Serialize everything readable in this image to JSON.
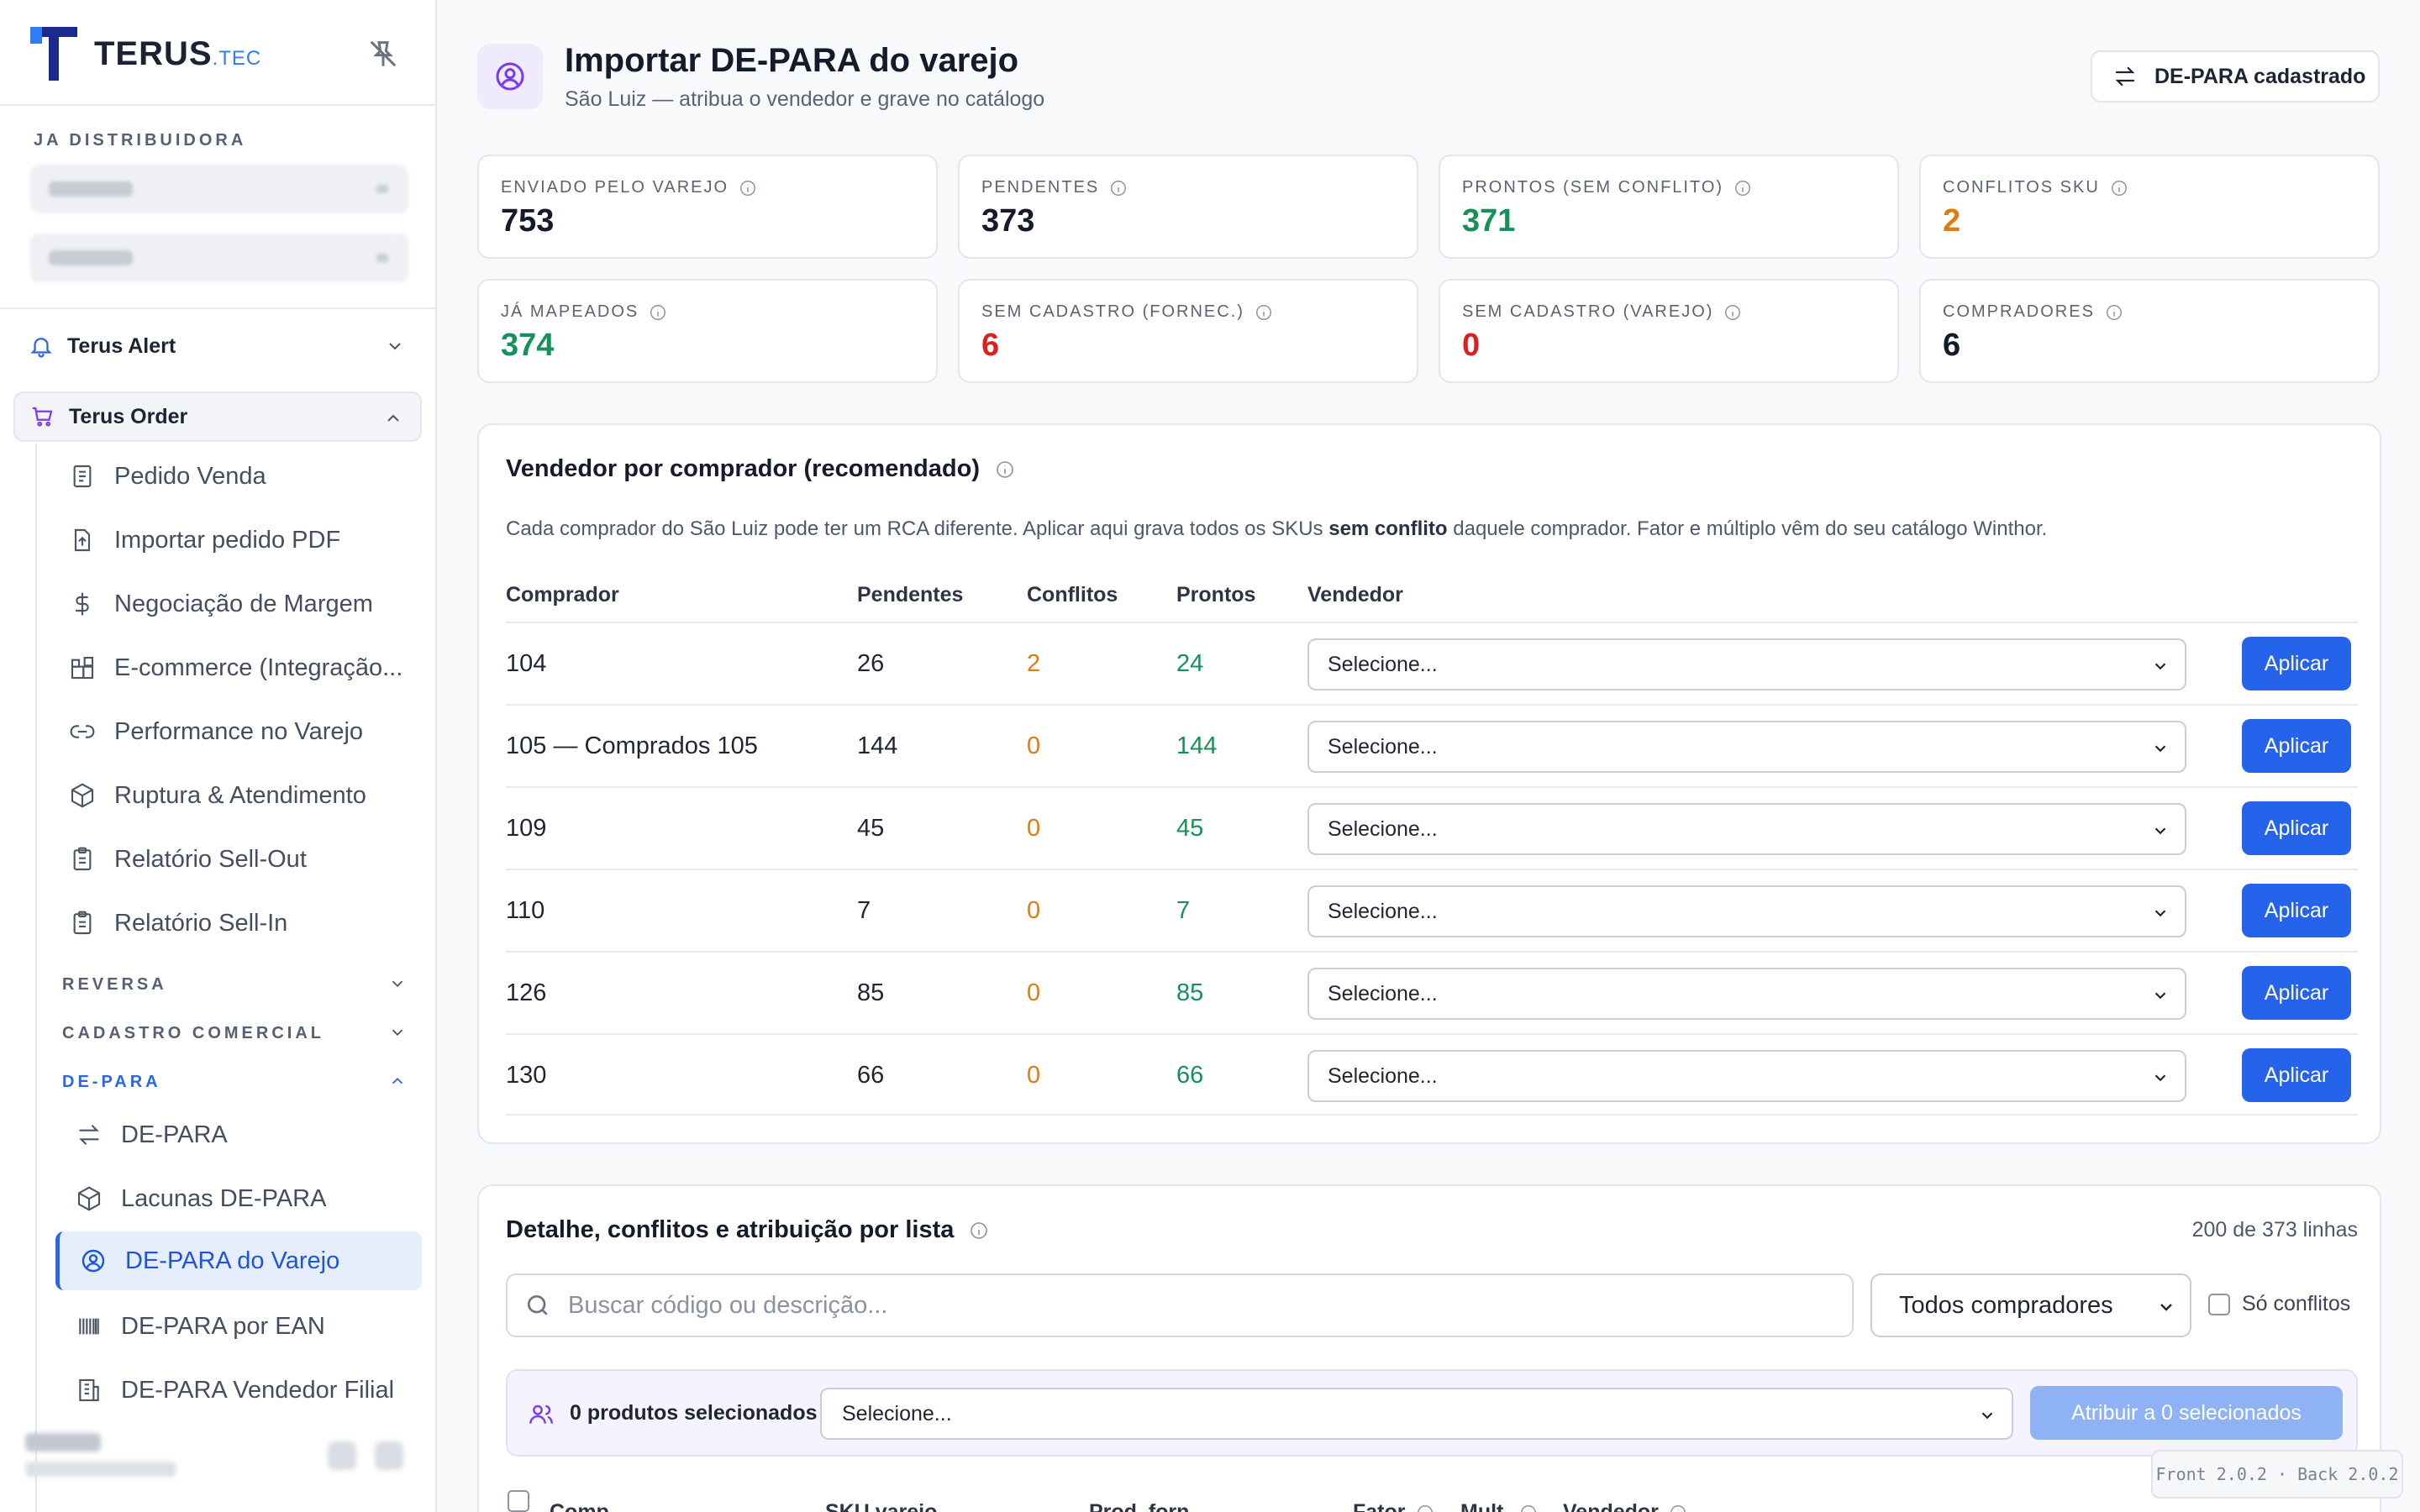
{
  "brand": {
    "name": "TERUS",
    "suffix": ".TEC"
  },
  "sidebar": {
    "org_label": "JA DISTRIBUIDORA",
    "groups": [
      {
        "label": "Terus Alert"
      },
      {
        "label": "Terus Order"
      }
    ],
    "order_items": [
      {
        "label": "Pedido Venda",
        "icon": "receipt-icon"
      },
      {
        "label": "Importar pedido PDF",
        "icon": "file-upload-icon"
      },
      {
        "label": "Negociação de Margem",
        "icon": "dollar-icon"
      },
      {
        "label": "E-commerce (Integração...",
        "icon": "blocks-icon"
      },
      {
        "label": "Performance no Varejo",
        "icon": "link-icon"
      },
      {
        "label": "Ruptura & Atendimento",
        "icon": "package-x-icon"
      },
      {
        "label": "Relatório Sell-Out",
        "icon": "clipboard-icon"
      },
      {
        "label": "Relatório Sell-In",
        "icon": "clipboard-icon"
      }
    ],
    "sections": [
      {
        "label": "REVERSA"
      },
      {
        "label": "CADASTRO COMERCIAL"
      },
      {
        "label": "DE-PARA"
      }
    ],
    "depara_items": [
      {
        "label": "DE-PARA",
        "icon": "arrows-swap-icon"
      },
      {
        "label": "Lacunas DE-PARA",
        "icon": "box-icon"
      },
      {
        "label": "DE-PARA do Varejo",
        "icon": "user-circle-icon"
      },
      {
        "label": "DE-PARA por EAN",
        "icon": "barcode-icon"
      },
      {
        "label": "DE-PARA Vendedor Filial",
        "icon": "building-icon"
      }
    ]
  },
  "header": {
    "title": "Importar DE-PARA do varejo",
    "subtitle": "São Luiz — atribua o vendedor e grave no catálogo",
    "action_label": "DE-PARA cadastrado"
  },
  "stats": [
    {
      "label": "ENVIADO PELO VAREJO",
      "value": "753",
      "color": "#151b2a"
    },
    {
      "label": "PENDENTES",
      "value": "373",
      "color": "#151b2a"
    },
    {
      "label": "PRONTOS (SEM CONFLITO)",
      "value": "371",
      "color": "#16915a"
    },
    {
      "label": "CONFLITOS SKU",
      "value": "2",
      "color": "#e07b10"
    },
    {
      "label": "JÁ MAPEADOS",
      "value": "374",
      "color": "#16915a"
    },
    {
      "label": "SEM CADASTRO (FORNEC.)",
      "value": "6",
      "color": "#dc1f1f"
    },
    {
      "label": "SEM CADASTRO (VAREJO)",
      "value": "0",
      "color": "#dc1f1f"
    },
    {
      "label": "COMPRADORES",
      "value": "6",
      "color": "#151b2a"
    }
  ],
  "buyers_card": {
    "title": "Vendedor por comprador (recomendado)",
    "desc_pre": "Cada comprador do São Luiz pode ter um RCA diferente. Aplicar aqui grava todos os SKUs ",
    "desc_bold": "sem conflito",
    "desc_post": " daquele comprador. Fator e múltiplo vêm do seu catálogo Winthor.",
    "columns": [
      "Comprador",
      "Pendentes",
      "Conflitos",
      "Prontos",
      "Vendedor"
    ],
    "select_placeholder": "Selecione...",
    "apply_label": "Aplicar",
    "rows": [
      {
        "buyer": "104",
        "pending": "26",
        "conflicts": "2",
        "ready": "24"
      },
      {
        "buyer": "105 — Comprados 105",
        "pending": "144",
        "conflicts": "0",
        "ready": "144"
      },
      {
        "buyer": "109",
        "pending": "45",
        "conflicts": "0",
        "ready": "45"
      },
      {
        "buyer": "110",
        "pending": "7",
        "conflicts": "0",
        "ready": "7"
      },
      {
        "buyer": "126",
        "pending": "85",
        "conflicts": "0",
        "ready": "85"
      },
      {
        "buyer": "130",
        "pending": "66",
        "conflicts": "0",
        "ready": "66"
      }
    ]
  },
  "detail_card": {
    "title": "Detalhe, conflitos e atribuição por lista",
    "lines_count": "200 de 373 linhas",
    "search_placeholder": "Buscar código ou descrição...",
    "buyer_filter": "Todos compradores",
    "only_conflicts": "Só conflitos",
    "selected_count": "0 produtos selecionados",
    "select_placeholder": "Selecione...",
    "assign_label": "Atribuir a 0 selecionados",
    "columns": [
      "Comp.",
      "SKU varejo",
      "Prod. forn.",
      "Fator",
      "Mult.",
      "Vendedor"
    ]
  },
  "version": "Front 2.0.2 · Back 2.0.2"
}
